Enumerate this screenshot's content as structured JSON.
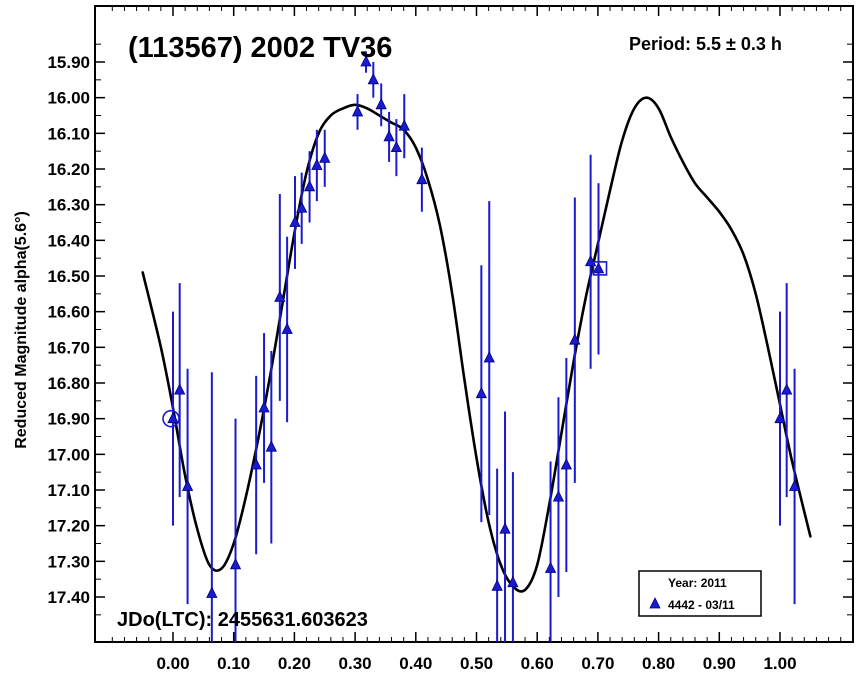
{
  "chart_data": {
    "type": "scatter",
    "title": "(113567) 2002 TV36",
    "period_label": "Period: 5.5 ± 0.3 h",
    "epoch_label": "JDo(LTC): 2455631.603623",
    "xlabel": "",
    "ylabel": "Reduced Magnitude alpha(5.6°)",
    "xlim": [
      -0.12,
      1.1
    ],
    "ylim": [
      15.8,
      17.5
    ],
    "y_inverted": true,
    "grid": false,
    "x_ticks": [
      "0.00",
      "0.10",
      "0.20",
      "0.30",
      "0.40",
      "0.50",
      "0.60",
      "0.70",
      "0.80",
      "0.90",
      "1.00"
    ],
    "x_tick_values": [
      0,
      0.1,
      0.2,
      0.3,
      0.4,
      0.5,
      0.6,
      0.7,
      0.8,
      0.9,
      1.0
    ],
    "y_ticks": [
      "15.90",
      "16.00",
      "16.10",
      "16.20",
      "16.30",
      "16.40",
      "16.50",
      "16.60",
      "16.70",
      "16.80",
      "16.90",
      "17.00",
      "17.10",
      "17.20",
      "17.30",
      "17.40"
    ],
    "y_tick_values": [
      15.9,
      16.0,
      16.1,
      16.2,
      16.3,
      16.4,
      16.5,
      16.6,
      16.7,
      16.8,
      16.9,
      17.0,
      17.1,
      17.2,
      17.3,
      17.4
    ],
    "legend": {
      "position": "bottom-right",
      "title": "Year: 2011",
      "entries": [
        "4442 - 03/11"
      ]
    },
    "marker_color": "#1a1ad0",
    "curve_color": "#000000",
    "series": [
      {
        "name": "4442 - 03/11",
        "points": [
          {
            "x": 0.0,
            "y": 16.9,
            "err": 0.3
          },
          {
            "x": 0.011,
            "y": 16.82,
            "err": 0.3
          },
          {
            "x": 0.024,
            "y": 17.09,
            "err": 0.33
          },
          {
            "x": 0.064,
            "y": 17.39,
            "err": 0.62
          },
          {
            "x": 0.103,
            "y": 17.31,
            "err": 0.41
          },
          {
            "x": 0.137,
            "y": 17.03,
            "err": 0.25
          },
          {
            "x": 0.15,
            "y": 16.87,
            "err": 0.21
          },
          {
            "x": 0.162,
            "y": 16.98,
            "err": 0.27
          },
          {
            "x": 0.176,
            "y": 16.56,
            "err": 0.29
          },
          {
            "x": 0.188,
            "y": 16.65,
            "err": 0.26
          },
          {
            "x": 0.201,
            "y": 16.35,
            "err": 0.13
          },
          {
            "x": 0.212,
            "y": 16.31,
            "err": 0.1
          },
          {
            "x": 0.225,
            "y": 16.25,
            "err": 0.1
          },
          {
            "x": 0.237,
            "y": 16.19,
            "err": 0.1
          },
          {
            "x": 0.25,
            "y": 16.17,
            "err": 0.08
          },
          {
            "x": 0.304,
            "y": 16.04,
            "err": 0.05
          },
          {
            "x": 0.318,
            "y": 15.9,
            "err": 0.03
          },
          {
            "x": 0.33,
            "y": 15.95,
            "err": 0.05
          },
          {
            "x": 0.343,
            "y": 16.02,
            "err": 0.06
          },
          {
            "x": 0.356,
            "y": 16.11,
            "err": 0.07
          },
          {
            "x": 0.368,
            "y": 16.14,
            "err": 0.08
          },
          {
            "x": 0.381,
            "y": 16.08,
            "err": 0.09
          },
          {
            "x": 0.41,
            "y": 16.23,
            "err": 0.09
          },
          {
            "x": 0.508,
            "y": 16.83,
            "err": 0.36
          },
          {
            "x": 0.521,
            "y": 16.73,
            "err": 0.44
          },
          {
            "x": 0.534,
            "y": 17.37,
            "err": 0.33
          },
          {
            "x": 0.547,
            "y": 17.21,
            "err": 0.33
          },
          {
            "x": 0.56,
            "y": 17.36,
            "err": 0.31
          },
          {
            "x": 0.622,
            "y": 17.32,
            "err": 0.3
          },
          {
            "x": 0.635,
            "y": 17.12,
            "err": 0.28
          },
          {
            "x": 0.648,
            "y": 17.03,
            "err": 0.3
          },
          {
            "x": 0.662,
            "y": 16.68,
            "err": 0.4
          },
          {
            "x": 0.688,
            "y": 16.46,
            "err": 0.3
          },
          {
            "x": 0.701,
            "y": 16.48,
            "err": 0.24
          },
          {
            "x": 1.0,
            "y": 16.9,
            "err": 0.3
          },
          {
            "x": 1.011,
            "y": 16.82,
            "err": 0.3
          },
          {
            "x": 1.024,
            "y": 17.09,
            "err": 0.33
          }
        ]
      }
    ],
    "highlighted_points": [
      {
        "x": 0.0,
        "y": 16.9,
        "marker": "circle"
      },
      {
        "x": 0.701,
        "y": 16.48,
        "marker": "square"
      }
    ],
    "fit_curve": {
      "x": [
        -0.05,
        -0.02,
        0.0,
        0.02,
        0.04,
        0.06,
        0.08,
        0.1,
        0.12,
        0.14,
        0.16,
        0.18,
        0.2,
        0.22,
        0.24,
        0.26,
        0.28,
        0.3,
        0.32,
        0.34,
        0.36,
        0.38,
        0.4,
        0.42,
        0.44,
        0.46,
        0.48,
        0.5,
        0.52,
        0.54,
        0.56,
        0.58,
        0.6,
        0.62,
        0.64,
        0.66,
        0.68,
        0.7,
        0.72,
        0.74,
        0.76,
        0.78,
        0.8,
        0.82,
        0.84,
        0.86,
        0.88,
        0.9,
        0.92,
        0.94,
        0.96,
        0.98,
        1.0,
        1.02,
        1.05
      ],
      "y": [
        16.49,
        16.7,
        16.87,
        17.06,
        17.21,
        17.31,
        17.32,
        17.25,
        17.12,
        16.96,
        16.78,
        16.58,
        16.38,
        16.21,
        16.1,
        16.05,
        16.03,
        16.02,
        16.03,
        16.05,
        16.07,
        16.09,
        16.14,
        16.23,
        16.36,
        16.55,
        16.79,
        17.01,
        17.19,
        17.31,
        17.37,
        17.38,
        17.31,
        17.14,
        16.94,
        16.74,
        16.56,
        16.41,
        16.26,
        16.12,
        16.03,
        16.0,
        16.03,
        16.11,
        16.18,
        16.24,
        16.28,
        16.32,
        16.37,
        16.44,
        16.55,
        16.7,
        16.86,
        17.02,
        17.23
      ]
    }
  }
}
